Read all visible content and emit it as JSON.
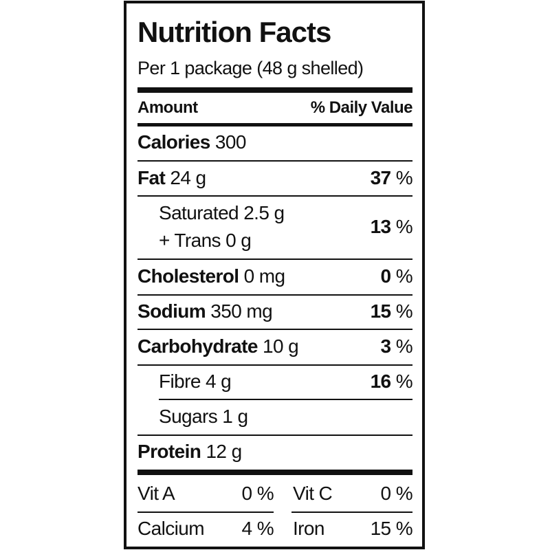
{
  "title": "Nutrition Facts",
  "serving": "Per 1 package (48 g shelled)",
  "header": {
    "left": "Amount",
    "right": "% Daily Value"
  },
  "rows": [
    {
      "name": "Calories",
      "amount": "300"
    },
    {
      "name": "Fat",
      "amount": "24 g",
      "dv": "37",
      "dv_unit": "%"
    },
    {
      "name": "Saturated 2.5 g",
      "name2": "+ Trans 0 g",
      "dv": "13",
      "dv_unit": "%"
    },
    {
      "name": "Cholesterol",
      "amount": "0 mg",
      "dv": "0",
      "dv_unit": "%"
    },
    {
      "name": "Sodium",
      "amount": "350 mg",
      "dv": "15",
      "dv_unit": "%"
    },
    {
      "name": "Carbohydrate",
      "amount": "10 g",
      "dv": "3",
      "dv_unit": "%"
    },
    {
      "name": "Fibre 4 g",
      "dv": "16",
      "dv_unit": "%"
    },
    {
      "name": "Sugars 1 g"
    },
    {
      "name": "Protein",
      "amount": "12 g"
    }
  ],
  "vitamins": [
    {
      "name": "Vit A",
      "dv": "0 %"
    },
    {
      "name": "Vit C",
      "dv": "0 %"
    },
    {
      "name": "Calcium",
      "dv": "4 %"
    },
    {
      "name": "Iron",
      "dv": "15 %"
    }
  ]
}
